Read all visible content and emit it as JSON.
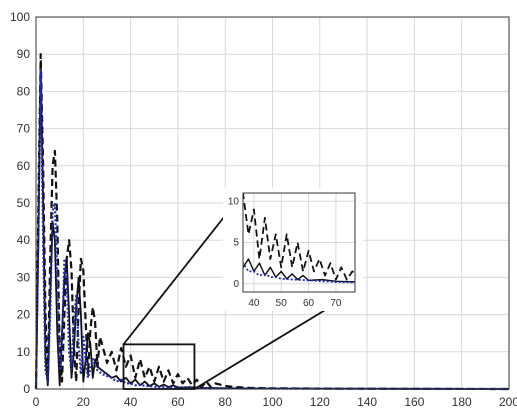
{
  "chart_data": {
    "type": "line",
    "title": "",
    "xlabel": "",
    "ylabel": "",
    "xlim": [
      0,
      200
    ],
    "ylim": [
      0,
      100
    ],
    "x_ticks": [
      0,
      20,
      40,
      60,
      80,
      100,
      120,
      140,
      160,
      180,
      200
    ],
    "y_ticks": [
      0,
      10,
      20,
      30,
      40,
      50,
      60,
      70,
      80,
      90,
      100
    ],
    "grid": true,
    "legend": "none",
    "colors": {
      "dashed": "#111111",
      "solid": "#111111",
      "dotted": "#1f2bb0",
      "axis": "#333333",
      "grid": "#d9d9d9"
    },
    "series": [
      {
        "style": "dashed",
        "x": [
          0,
          1,
          2,
          3,
          4,
          5,
          6,
          7,
          8,
          9,
          10,
          11,
          12,
          13,
          14,
          15,
          16,
          17,
          18,
          19,
          20,
          21,
          22,
          23,
          24,
          25,
          26,
          27,
          28,
          30,
          32,
          34,
          36,
          38,
          40,
          42,
          44,
          46,
          48,
          50,
          52,
          54,
          56,
          58,
          60,
          62,
          64,
          66,
          68,
          70,
          72,
          74,
          76,
          80,
          85,
          90,
          100,
          120,
          150,
          200
        ],
        "y": [
          0,
          50,
          90,
          60,
          20,
          2,
          35,
          60,
          64,
          45,
          10,
          2,
          20,
          35,
          40,
          32,
          12,
          2,
          22,
          35,
          32,
          18,
          4,
          16,
          22,
          18,
          6,
          14,
          12,
          7,
          10,
          5,
          11,
          6,
          9,
          3,
          8,
          3,
          6,
          2,
          6,
          2,
          5,
          1.5,
          4,
          1.5,
          3,
          1,
          2.5,
          0.5,
          2,
          0.5,
          1.5,
          0.8,
          0.5,
          0.3,
          0.2,
          0.1,
          0.05,
          0
        ]
      },
      {
        "style": "solid",
        "x": [
          0,
          1,
          2,
          3,
          4,
          5,
          6,
          7,
          8,
          9,
          10,
          11,
          12,
          13,
          14,
          15,
          16,
          17,
          18,
          19,
          20,
          21,
          22,
          23,
          24,
          25,
          26,
          28,
          30,
          32,
          34,
          36,
          38,
          40,
          42,
          44,
          46,
          48,
          50,
          52,
          54,
          56,
          58,
          60,
          65,
          70,
          80,
          100,
          150,
          200
        ],
        "y": [
          0,
          40,
          88,
          50,
          8,
          1,
          25,
          45,
          40,
          15,
          1,
          15,
          30,
          35,
          20,
          3,
          10,
          22,
          30,
          20,
          2,
          8,
          15,
          12,
          3,
          8,
          6,
          5,
          4,
          3,
          3.5,
          2,
          3,
          1.5,
          2.5,
          1,
          2,
          0.8,
          1.5,
          0.6,
          1.2,
          0.5,
          1,
          0.4,
          0.5,
          0.3,
          0.2,
          0.1,
          0.05,
          0
        ]
      },
      {
        "style": "dotted",
        "x": [
          0,
          1,
          2,
          3,
          4,
          5,
          6,
          7,
          8,
          9,
          10,
          11,
          12,
          13,
          14,
          15,
          16,
          17,
          18,
          19,
          20,
          21,
          22,
          24,
          26,
          28,
          30,
          32,
          34,
          36,
          38,
          40,
          42,
          44,
          46,
          48,
          50,
          55,
          60,
          65,
          70,
          80,
          100,
          150,
          200
        ],
        "y": [
          0,
          45,
          86,
          40,
          5,
          2,
          20,
          48,
          50,
          30,
          5,
          12,
          35,
          30,
          10,
          5,
          18,
          25,
          12,
          4,
          14,
          8,
          3,
          8,
          5,
          4,
          3.5,
          3,
          2,
          2.5,
          1.5,
          1.5,
          1,
          1.2,
          0.8,
          0.8,
          0.6,
          0.5,
          0.4,
          0.3,
          0.2,
          0.15,
          0.1,
          0.05,
          0
        ]
      }
    ],
    "inset": {
      "xlim": [
        36,
        77
      ],
      "ylim": [
        -1,
        11
      ],
      "x_ticks": [
        40,
        50,
        60,
        70
      ],
      "y_ticks": [
        0,
        5,
        10
      ],
      "zoom_box": {
        "x": [
          37,
          67
        ],
        "y": [
          0,
          12
        ]
      }
    }
  }
}
